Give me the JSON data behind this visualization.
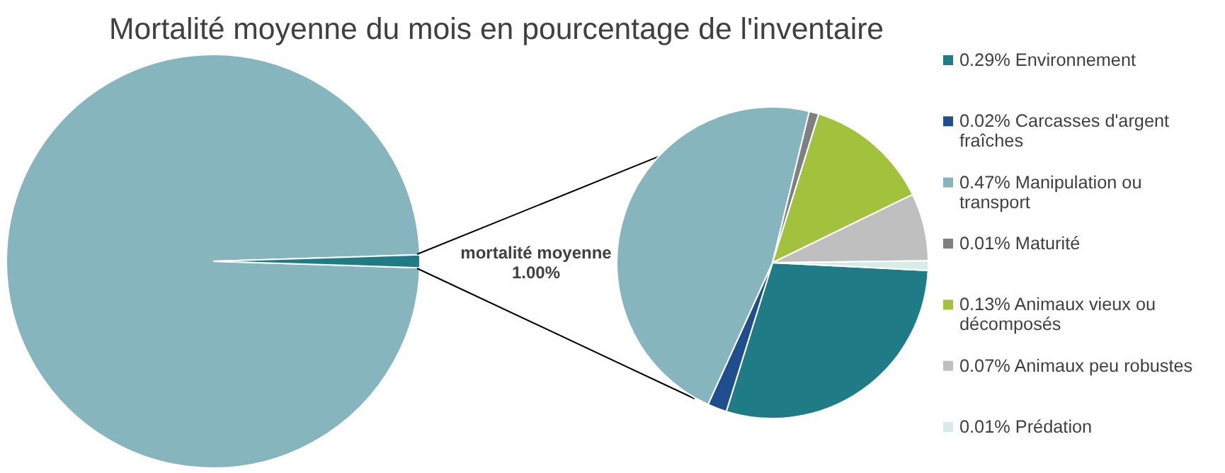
{
  "chart_data": [
    {
      "type": "pie",
      "title": "Mortalité moyenne du mois en pourcentage de l'inventaire",
      "categories": [
        null,
        "mortalité moyenne"
      ],
      "values": [
        99,
        1
      ],
      "colors": [
        "#86b5bd",
        "#1f7b86"
      ],
      "value_labels": [
        null,
        "1.00%"
      ]
    },
    {
      "type": "pie",
      "categories": [
        "0.29% Environnement",
        "0.02% Carcasses d'argent fraîches",
        "0.47% Manipulation ou transport",
        "0.01% Maturité",
        "0.13% Animaux vieux ou décomposés",
        "0.07% Animaux peu robustes",
        "0.01% Prédation"
      ],
      "values": [
        0.29,
        0.02,
        0.47,
        0.01,
        0.13,
        0.07,
        0.01
      ],
      "colors": [
        "#1f7b86",
        "#1f4e8c",
        "#86b5bd",
        "#808080",
        "#a2c13c",
        "#bfbfbf",
        "#d6ece9"
      ],
      "legend": "right"
    }
  ]
}
